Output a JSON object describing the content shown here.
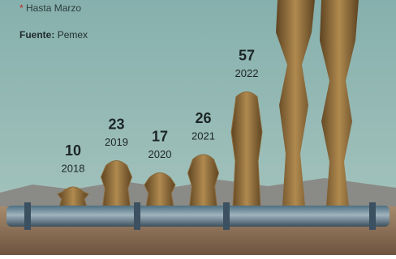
{
  "note": {
    "marker": "*",
    "text": "Hasta Marzo"
  },
  "source": {
    "label": "Fuente:",
    "text": "Pemex"
  },
  "chart_data": {
    "type": "bar",
    "categories": [
      "2018",
      "2019",
      "2020",
      "2021",
      "2022"
    ],
    "values": [
      10,
      23,
      17,
      26,
      57
    ],
    "color": "#8a6a3a"
  }
}
